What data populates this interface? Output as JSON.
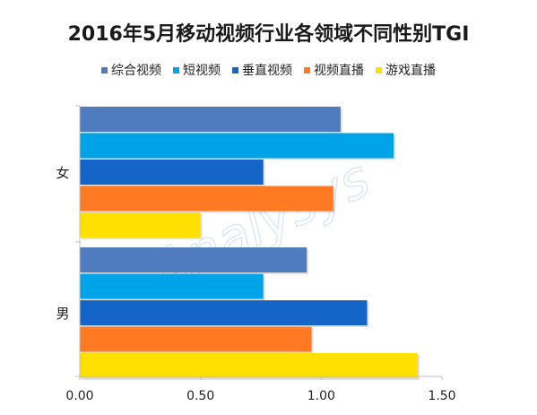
{
  "chart_data": {
    "type": "bar",
    "orientation": "horizontal",
    "title": "2016年5月移动视频行业各领域不同性别TGI",
    "categories": [
      "女",
      "男"
    ],
    "series": [
      {
        "name": "综合视频",
        "color": "#4f7bbf",
        "values": [
          1.08,
          0.94
        ]
      },
      {
        "name": "短视频",
        "color": "#00a3e8",
        "values": [
          1.3,
          0.76
        ]
      },
      {
        "name": "垂直视频",
        "color": "#1565c8",
        "values": [
          0.76,
          1.19
        ]
      },
      {
        "name": "视频直播",
        "color": "#ff7a22",
        "values": [
          1.05,
          0.96
        ]
      },
      {
        "name": "游戏直播",
        "color": "#ffe000",
        "values": [
          0.5,
          1.4
        ]
      }
    ],
    "xlim": [
      0,
      1.5
    ],
    "xticks": [
      "0.00",
      "0.50",
      "1.00",
      "1.50"
    ],
    "xlabel": "",
    "ylabel": "",
    "grid": false,
    "legend_position": "top"
  },
  "watermark": "Analysys"
}
